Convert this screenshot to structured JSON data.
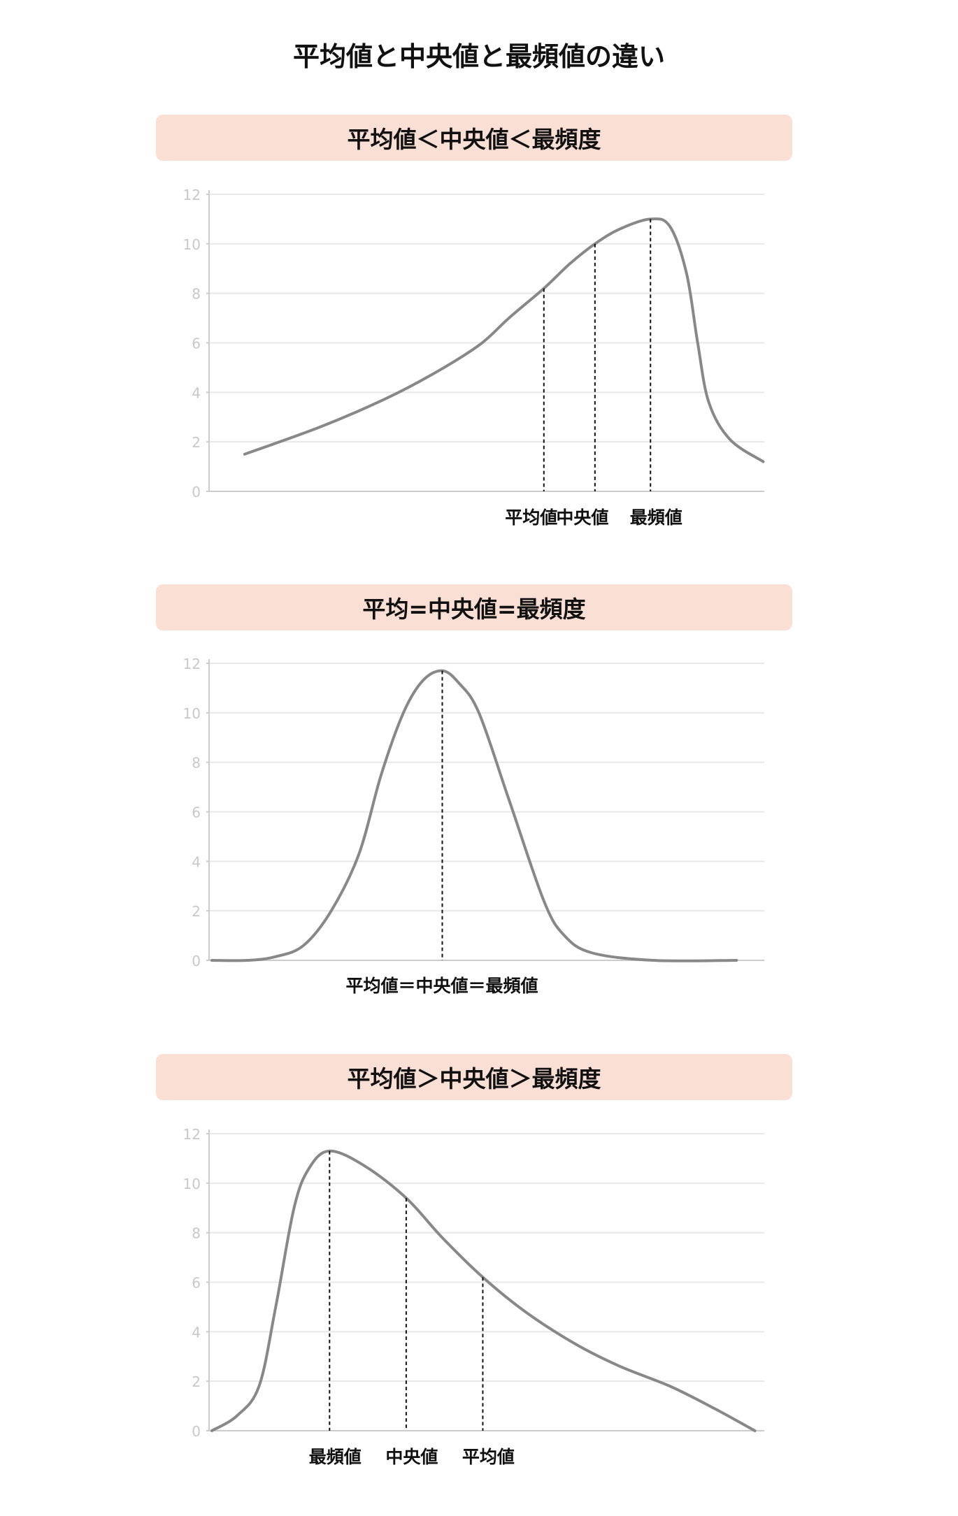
{
  "title": "平均値と中央値と最頻値の違い",
  "colors": {
    "banner": "#fadfd5",
    "curve": "#888888",
    "grid": "#e8e8e8",
    "tick_label": "#c8c8c8",
    "marker_line": "#111111"
  },
  "chart_data": [
    {
      "type": "line",
      "heading": "平均値＜中央値＜最頻度",
      "ylim": [
        0,
        12
      ],
      "yticks": [
        "0",
        "2",
        "4",
        "6",
        "8",
        "10",
        "12"
      ],
      "grid": true,
      "xlim": [
        0,
        100
      ],
      "curve": [
        [
          6.4,
          1.5
        ],
        [
          20,
          2.6
        ],
        [
          31.4,
          3.7
        ],
        [
          40,
          4.7
        ],
        [
          48.6,
          5.9
        ],
        [
          54,
          7.0
        ],
        [
          60.3,
          8.2
        ],
        [
          65,
          9.2
        ],
        [
          69.5,
          10.0
        ],
        [
          74,
          10.6
        ],
        [
          79.5,
          11.0
        ],
        [
          83,
          10.7
        ],
        [
          86,
          8.8
        ],
        [
          88,
          6.0
        ],
        [
          90,
          3.6
        ],
        [
          93.8,
          2.1
        ],
        [
          99.8,
          1.2
        ]
      ],
      "markers": [
        {
          "label": "平均値",
          "x": 60.3,
          "y": 8.2
        },
        {
          "label": "中央値",
          "x": 69.5,
          "y": 10.0
        },
        {
          "label": "最頻値",
          "x": 79.5,
          "y": 11.0
        }
      ],
      "marker_label_text": ""
    },
    {
      "type": "line",
      "heading": "平均=中央値=最頻度",
      "ylim": [
        0,
        12
      ],
      "yticks": [
        "0",
        "2",
        "4",
        "6",
        "8",
        "10",
        "12"
      ],
      "grid": true,
      "xlim": [
        0,
        100
      ],
      "curve": [
        [
          0.5,
          0
        ],
        [
          7,
          0
        ],
        [
          12,
          0.15
        ],
        [
          17,
          0.6
        ],
        [
          22,
          2.0
        ],
        [
          27,
          4.3
        ],
        [
          31,
          7.5
        ],
        [
          35,
          10.0
        ],
        [
          38.5,
          11.3
        ],
        [
          42,
          11.7
        ],
        [
          45,
          11.2
        ],
        [
          48.6,
          10.0
        ],
        [
          54,
          6.5
        ],
        [
          60.3,
          2.4
        ],
        [
          64,
          1.0
        ],
        [
          69,
          0.3
        ],
        [
          80,
          0
        ],
        [
          95,
          0
        ]
      ],
      "markers": [
        {
          "label": "",
          "x": 42,
          "y": 11.7
        }
      ],
      "marker_label_text": "平均値＝中央値＝最頻値"
    },
    {
      "type": "line",
      "heading": "平均値＞中央値＞最頻度",
      "ylim": [
        0,
        12
      ],
      "yticks": [
        "0",
        "2",
        "4",
        "6",
        "8",
        "10",
        "12"
      ],
      "grid": true,
      "xlim": [
        0,
        100
      ],
      "curve": [
        [
          0.5,
          0
        ],
        [
          5,
          0.6
        ],
        [
          9,
          1.8
        ],
        [
          12,
          5.0
        ],
        [
          15.3,
          9.0
        ],
        [
          18,
          10.6
        ],
        [
          21.7,
          11.3
        ],
        [
          28,
          10.7
        ],
        [
          35.5,
          9.4
        ],
        [
          42,
          7.8
        ],
        [
          49.3,
          6.2
        ],
        [
          57,
          4.8
        ],
        [
          66,
          3.5
        ],
        [
          74,
          2.6
        ],
        [
          83,
          1.8
        ],
        [
          91,
          0.9
        ],
        [
          98.3,
          0
        ]
      ],
      "markers": [
        {
          "label": "最頻値",
          "x": 21.7,
          "y": 11.3
        },
        {
          "label": "中央値",
          "x": 35.5,
          "y": 9.4
        },
        {
          "label": "平均値",
          "x": 49.3,
          "y": 6.2
        }
      ],
      "marker_label_text": ""
    }
  ]
}
